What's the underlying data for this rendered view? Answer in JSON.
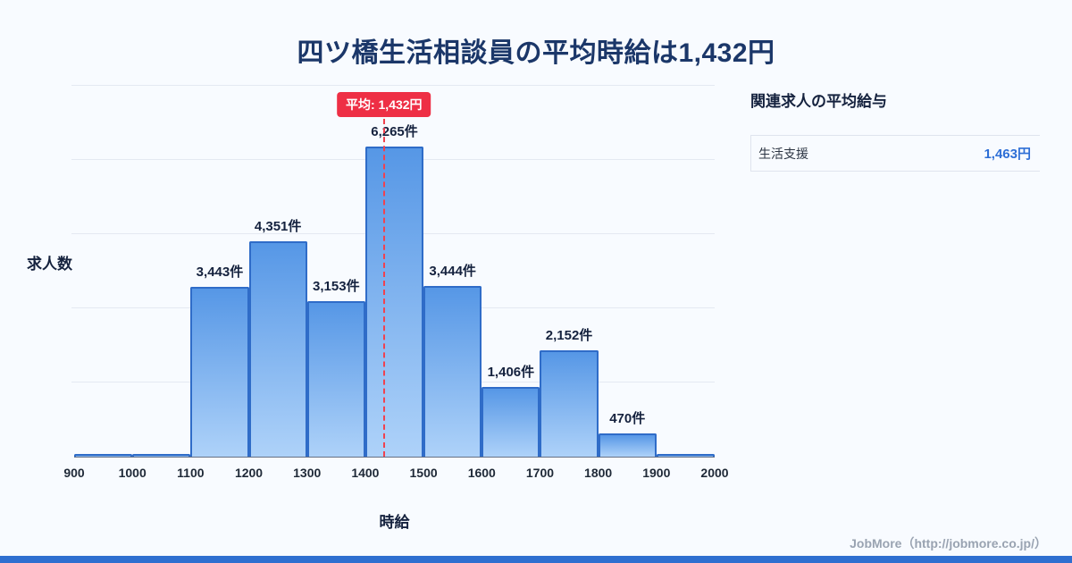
{
  "page": {
    "title": "四ツ橋生活相談員の平均時給は1,432円",
    "footer": "JobMore（http://jobmore.co.jp/）",
    "background": "#f8fbff",
    "accent": "#2e6fd0"
  },
  "chart_data": {
    "type": "bar",
    "title": "四ツ橋生活相談員の平均時給は1,432円",
    "xlabel": "時給",
    "ylabel": "求人数",
    "x_range": [
      900,
      2000
    ],
    "bin_start": 900,
    "bin_width": 100,
    "x_ticks": [
      900,
      1000,
      1100,
      1200,
      1300,
      1400,
      1500,
      1600,
      1700,
      1800,
      1900,
      2000
    ],
    "categories": [
      "900-1000",
      "1000-1100",
      "1100-1200",
      "1200-1300",
      "1300-1400",
      "1400-1500",
      "1500-1600",
      "1600-1700",
      "1700-1800",
      "1800-1900",
      "1900-2000"
    ],
    "values": [
      60,
      60,
      3443,
      4351,
      3153,
      6265,
      3444,
      1406,
      2152,
      470,
      60
    ],
    "labels": [
      "",
      "",
      "3,443件",
      "4,351件",
      "3,153件",
      "6,265件",
      "3,444件",
      "1,406件",
      "2,152件",
      "470件",
      ""
    ],
    "ylim": [
      0,
      7500
    ],
    "grid": true,
    "grid_divisions": 5,
    "legend": "none",
    "average": {
      "value": 1432,
      "label": "平均: 1,432円"
    },
    "colors": {
      "bar_top": "#5697e6",
      "bar_bottom": "#aed2f9",
      "bar_border": "#2f6cc8",
      "average_line": "#f0424f",
      "average_badge": "#ee2f45"
    }
  },
  "side_panel": {
    "title": "関連求人の平均給与",
    "rows": [
      {
        "label": "生活支援",
        "value": "1,463円"
      }
    ]
  }
}
